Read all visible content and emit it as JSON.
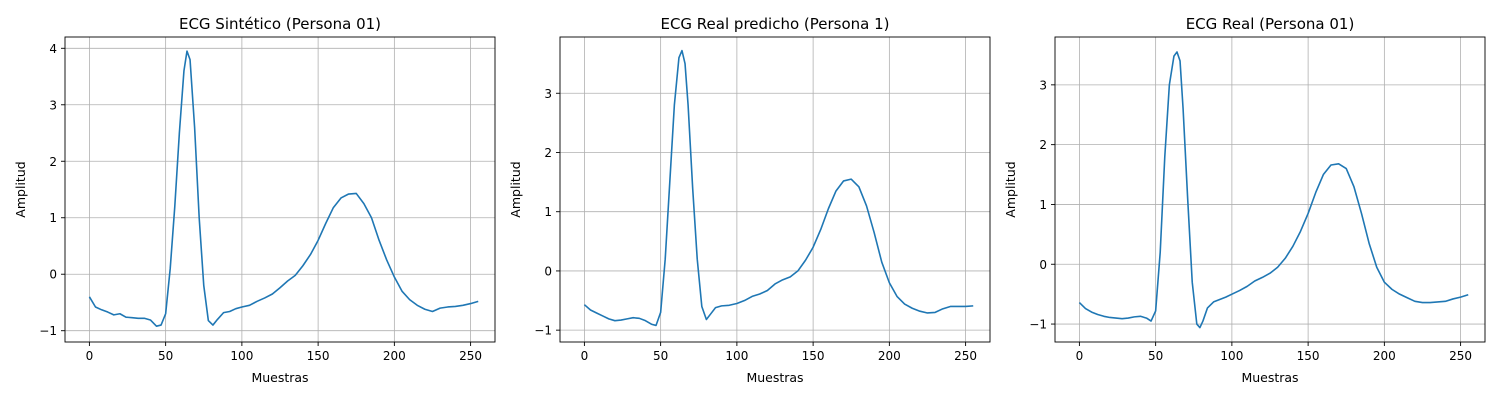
{
  "chart_data": [
    {
      "type": "line",
      "title": "ECG Sintético (Persona 01)",
      "xlabel": "Muestras",
      "ylabel": "Amplitud",
      "xlim": [
        -16,
        266
      ],
      "ylim": [
        -1.2,
        4.2
      ],
      "xticks": [
        0,
        50,
        100,
        150,
        200,
        250
      ],
      "yticks": [
        -1,
        0,
        1,
        2,
        3,
        4
      ],
      "grid": true,
      "color": "#1f77b4",
      "series": [
        {
          "x": [
            0,
            4,
            8,
            12,
            16,
            20,
            24,
            28,
            32,
            36,
            40,
            44,
            47,
            50,
            53,
            56,
            59,
            62,
            64,
            66,
            69,
            72,
            75,
            78,
            81,
            84,
            88,
            92,
            96,
            100,
            105,
            110,
            115,
            120,
            125,
            130,
            135,
            140,
            145,
            150,
            155,
            160,
            165,
            170,
            175,
            180,
            185,
            190,
            195,
            200,
            205,
            210,
            215,
            220,
            225,
            230,
            235,
            240,
            245,
            250,
            255
          ],
          "y": [
            -0.4,
            -0.58,
            -0.63,
            -0.67,
            -0.72,
            -0.7,
            -0.76,
            -0.77,
            -0.78,
            -0.78,
            -0.81,
            -0.92,
            -0.9,
            -0.7,
            0.1,
            1.2,
            2.5,
            3.6,
            3.95,
            3.8,
            2.6,
            1.0,
            -0.2,
            -0.82,
            -0.9,
            -0.8,
            -0.68,
            -0.66,
            -0.61,
            -0.58,
            -0.55,
            -0.48,
            -0.42,
            -0.35,
            -0.24,
            -0.12,
            -0.02,
            0.15,
            0.35,
            0.6,
            0.9,
            1.18,
            1.35,
            1.42,
            1.43,
            1.25,
            1.0,
            0.6,
            0.25,
            -0.05,
            -0.3,
            -0.45,
            -0.55,
            -0.62,
            -0.66,
            -0.6,
            -0.58,
            -0.57,
            -0.55,
            -0.52,
            -0.48
          ]
        }
      ]
    },
    {
      "type": "line",
      "title": "ECG Real predicho (Persona 1)",
      "xlabel": "Muestras",
      "ylabel": "Amplitud",
      "xlim": [
        -16,
        266
      ],
      "ylim": [
        -1.2,
        3.95
      ],
      "xticks": [
        0,
        50,
        100,
        150,
        200,
        250
      ],
      "yticks": [
        -1,
        0,
        1,
        2,
        3
      ],
      "grid": true,
      "color": "#1f77b4",
      "series": [
        {
          "x": [
            0,
            4,
            8,
            12,
            16,
            20,
            24,
            28,
            32,
            36,
            40,
            44,
            47,
            50,
            53,
            56,
            59,
            62,
            64,
            66,
            68,
            71,
            74,
            77,
            80,
            83,
            86,
            90,
            95,
            100,
            105,
            110,
            115,
            120,
            125,
            130,
            135,
            140,
            145,
            150,
            155,
            160,
            165,
            170,
            175,
            180,
            185,
            190,
            195,
            200,
            205,
            210,
            215,
            220,
            225,
            230,
            235,
            240,
            245,
            250,
            255
          ],
          "y": [
            -0.57,
            -0.66,
            -0.71,
            -0.76,
            -0.81,
            -0.84,
            -0.83,
            -0.81,
            -0.79,
            -0.8,
            -0.84,
            -0.9,
            -0.92,
            -0.7,
            0.2,
            1.5,
            2.8,
            3.6,
            3.72,
            3.5,
            2.8,
            1.4,
            0.2,
            -0.6,
            -0.82,
            -0.72,
            -0.62,
            -0.59,
            -0.58,
            -0.55,
            -0.5,
            -0.43,
            -0.39,
            -0.33,
            -0.22,
            -0.15,
            -0.1,
            0.0,
            0.18,
            0.4,
            0.7,
            1.05,
            1.35,
            1.52,
            1.55,
            1.42,
            1.1,
            0.65,
            0.15,
            -0.2,
            -0.43,
            -0.56,
            -0.63,
            -0.68,
            -0.71,
            -0.7,
            -0.64,
            -0.6,
            -0.6,
            -0.6,
            -0.59
          ]
        }
      ]
    },
    {
      "type": "line",
      "title": "ECG Real (Persona 01)",
      "xlabel": "Muestras",
      "ylabel": "Amplitud",
      "xlim": [
        -16,
        266
      ],
      "ylim": [
        -1.3,
        3.8
      ],
      "xticks": [
        0,
        50,
        100,
        150,
        200,
        250
      ],
      "yticks": [
        -1,
        0,
        1,
        2,
        3
      ],
      "grid": true,
      "color": "#1f77b4",
      "series": [
        {
          "x": [
            0,
            4,
            8,
            12,
            16,
            20,
            24,
            28,
            32,
            36,
            40,
            44,
            47,
            50,
            53,
            56,
            59,
            62,
            64,
            66,
            68,
            71,
            74,
            77,
            79,
            81,
            84,
            88,
            92,
            96,
            100,
            105,
            110,
            115,
            120,
            125,
            130,
            135,
            140,
            145,
            150,
            155,
            160,
            165,
            170,
            175,
            180,
            185,
            190,
            195,
            200,
            205,
            210,
            215,
            220,
            225,
            230,
            235,
            240,
            245,
            250,
            255
          ],
          "y": [
            -0.64,
            -0.74,
            -0.8,
            -0.84,
            -0.87,
            -0.89,
            -0.9,
            -0.91,
            -0.9,
            -0.88,
            -0.87,
            -0.9,
            -0.95,
            -0.78,
            0.2,
            1.8,
            3.0,
            3.48,
            3.55,
            3.4,
            2.6,
            1.1,
            -0.3,
            -1.0,
            -1.06,
            -0.95,
            -0.73,
            -0.63,
            -0.59,
            -0.55,
            -0.5,
            -0.44,
            -0.37,
            -0.28,
            -0.22,
            -0.15,
            -0.05,
            0.1,
            0.3,
            0.55,
            0.85,
            1.2,
            1.5,
            1.66,
            1.68,
            1.6,
            1.3,
            0.85,
            0.35,
            -0.05,
            -0.3,
            -0.42,
            -0.5,
            -0.56,
            -0.62,
            -0.64,
            -0.64,
            -0.63,
            -0.62,
            -0.58,
            -0.55,
            -0.51
          ]
        }
      ]
    }
  ]
}
